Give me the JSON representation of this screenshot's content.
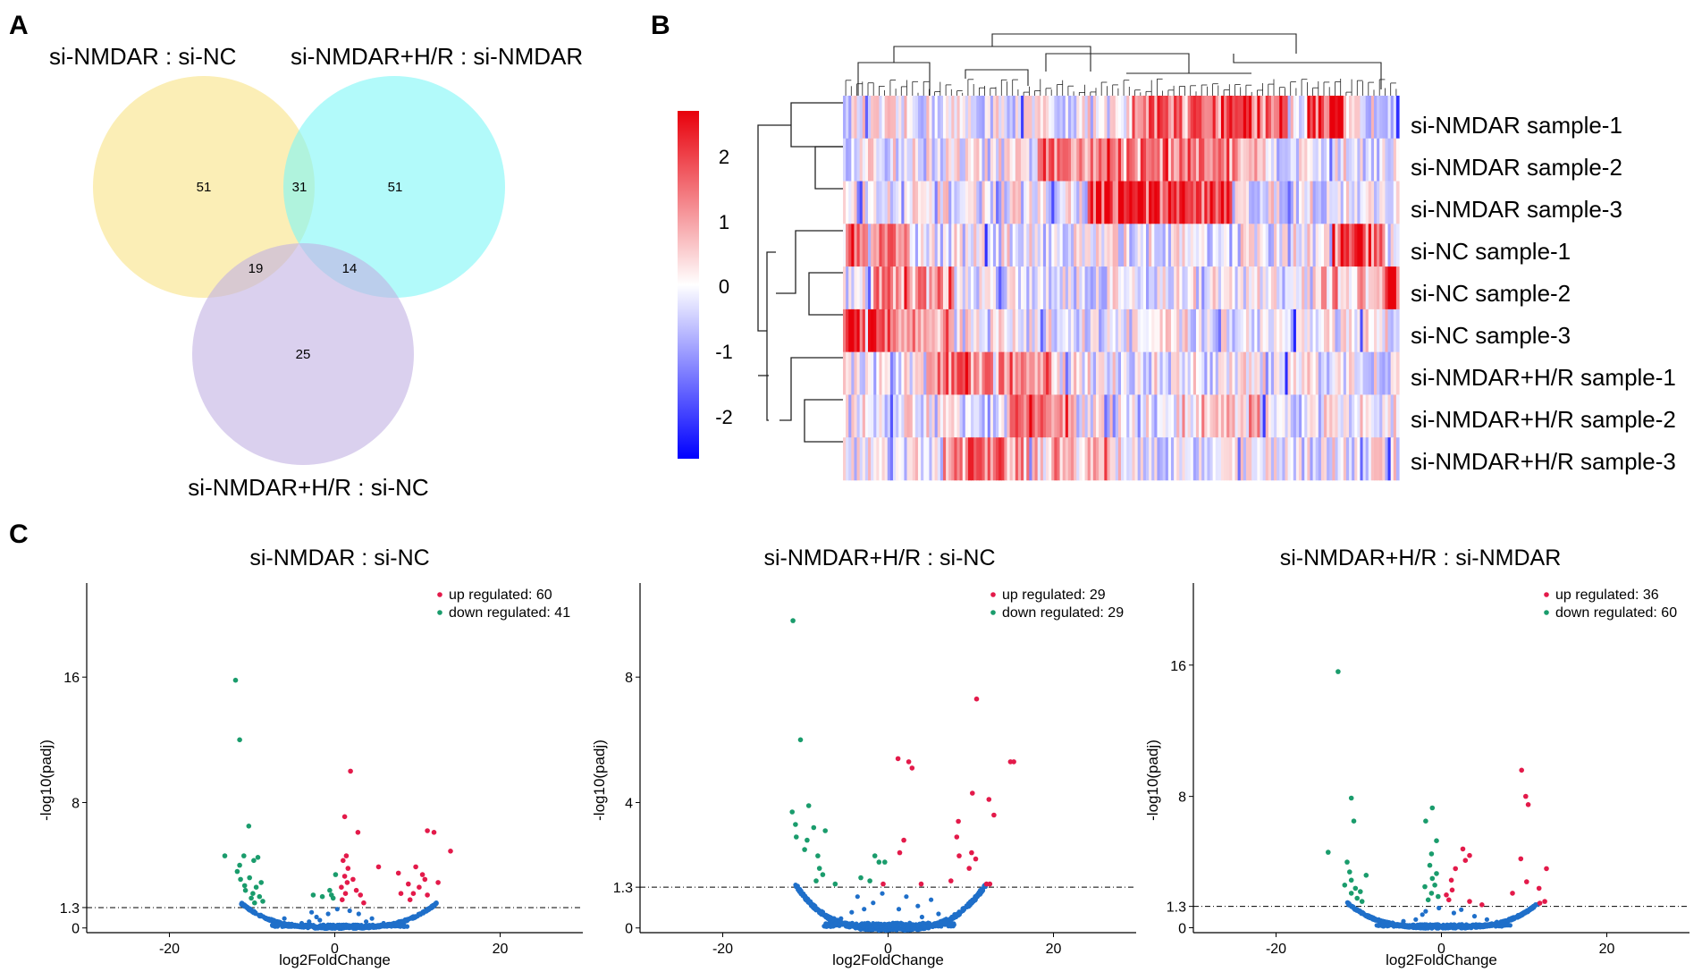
{
  "panels": {
    "a": "A",
    "b": "B",
    "c": "C"
  },
  "venn": {
    "sets": [
      {
        "label": "si-NMDAR : si-NC",
        "color": "#f9e286"
      },
      {
        "label": "si-NMDAR+H/R : si-NMDAR",
        "color": "#7ef6f6"
      },
      {
        "label": "si-NMDAR+H/R : si-NC",
        "color": "#c2b1e3"
      }
    ],
    "regions": {
      "a_only": "51",
      "b_only": "51",
      "a_b": "31",
      "a_c": "19",
      "b_c": "14",
      "c_only": "25"
    }
  },
  "heatmap": {
    "rows": [
      "si-NMDAR sample-1",
      "si-NMDAR sample-2",
      "si-NMDAR sample-3",
      "si-NC sample-1",
      "si-NC sample-2",
      "si-NC sample-3",
      "si-NMDAR+H/R sample-1",
      "si-NMDAR+H/R sample-2",
      "si-NMDAR+H/R sample-3"
    ],
    "legend_ticks": [
      "2",
      "1",
      "0",
      "-1",
      "-2"
    ],
    "colors": {
      "high": "#e8000b",
      "mid": "#ffffff",
      "low": "#0000ff"
    }
  },
  "chart_data": [
    {
      "type": "scatter",
      "title": "si-NMDAR : si-NC",
      "xlabel": "log2FoldChange",
      "ylabel": "-log10(padj)",
      "xlim": [
        -30,
        30
      ],
      "ylim": [
        -0.3,
        22
      ],
      "xticks": [
        "-20",
        "0",
        "20"
      ],
      "yticks": [
        "0",
        "1.3",
        "8",
        "16"
      ],
      "threshold": 1.3,
      "legend": {
        "up": "up regulated: 60",
        "down": "down regulated: 41"
      },
      "colors": {
        "up": "#e31a4a",
        "down": "#1a9c6c",
        "ns": "#1f6fc9"
      },
      "up": [
        [
          1.9,
          10
        ],
        [
          1.2,
          7.1
        ],
        [
          2.8,
          6.1
        ],
        [
          11.2,
          6.2
        ],
        [
          12,
          6.1
        ],
        [
          14,
          4.9
        ],
        [
          1,
          4.3
        ],
        [
          1.4,
          4.6
        ],
        [
          1.6,
          3.8
        ],
        [
          1.2,
          3.3
        ],
        [
          0.8,
          2.6
        ],
        [
          1.3,
          2.2
        ],
        [
          2.2,
          3.1
        ],
        [
          2.6,
          2.4
        ],
        [
          3.1,
          2.1
        ],
        [
          5.3,
          3.9
        ],
        [
          7.7,
          3.5
        ],
        [
          8.9,
          2.8
        ],
        [
          9.5,
          2.2
        ],
        [
          10.2,
          2.6
        ],
        [
          9.8,
          3.9
        ],
        [
          10.6,
          3.4
        ],
        [
          11.2,
          2.1
        ],
        [
          9.1,
          1.8
        ],
        [
          12.5,
          2.9
        ],
        [
          0.9,
          1.8
        ],
        [
          3.5,
          1.6
        ],
        [
          8,
          2.2
        ],
        [
          10.9,
          3.1
        ],
        [
          1.5,
          2.9
        ]
      ],
      "down": [
        [
          -12,
          15.8
        ],
        [
          -11.5,
          12
        ],
        [
          -10.4,
          6.5
        ],
        [
          -13.3,
          4.6
        ],
        [
          -11,
          4.6
        ],
        [
          -9.3,
          4.5
        ],
        [
          -9.8,
          4.3
        ],
        [
          -11.5,
          4
        ],
        [
          -11.4,
          3.1
        ],
        [
          -10.9,
          2.7
        ],
        [
          -9.9,
          2.2
        ],
        [
          -10.3,
          3.2
        ],
        [
          -8.9,
          2.9
        ],
        [
          -9.5,
          2.6
        ],
        [
          -10.8,
          2.4
        ],
        [
          -9.1,
          2
        ],
        [
          -8.7,
          1.7
        ],
        [
          -11.8,
          3.6
        ],
        [
          -10.1,
          1.9
        ],
        [
          -2.6,
          2.1
        ],
        [
          -1.5,
          2
        ],
        [
          -0.6,
          2.4
        ],
        [
          -0.2,
          1.9
        ],
        [
          0.1,
          3.4
        ],
        [
          -0.4,
          2.1
        ],
        [
          -9.7,
          1.6
        ]
      ],
      "ns_curve": {
        "cx": 0.5,
        "halfwidth": 11.8,
        "floor": 0.08,
        "height": 1.55
      },
      "ns_extra": [
        [
          -2.2,
          0.7
        ],
        [
          -1.8,
          0.5
        ],
        [
          -4,
          0.3
        ],
        [
          3.8,
          0.4
        ],
        [
          4.5,
          0.6
        ],
        [
          -5.2,
          0.25
        ],
        [
          2.9,
          0.9
        ],
        [
          -3.1,
          0.4
        ],
        [
          5.9,
          0.3
        ],
        [
          -6.1,
          0.6
        ],
        [
          0.3,
          1.2
        ],
        [
          -0.8,
          0.9
        ],
        [
          1.8,
          1.1
        ],
        [
          -2.8,
          1.0
        ]
      ]
    },
    {
      "type": "scatter",
      "title": "si-NMDAR+H/R : si-NC",
      "xlabel": "log2FoldChange",
      "ylabel": "-log10(padj)",
      "xlim": [
        -30,
        30
      ],
      "ylim": [
        -0.15,
        11
      ],
      "xticks": [
        "-20",
        "0",
        "20"
      ],
      "yticks": [
        "0",
        "1.3",
        "4",
        "8"
      ],
      "threshold": 1.3,
      "legend": {
        "up": "up regulated: 29",
        "down": "down regulated: 29"
      },
      "colors": {
        "up": "#e31a4a",
        "down": "#1a9c6c",
        "ns": "#1f6fc9"
      },
      "up": [
        [
          1.2,
          5.4
        ],
        [
          2.5,
          5.3
        ],
        [
          2.9,
          5.1
        ],
        [
          10.7,
          7.3
        ],
        [
          14.8,
          5.3
        ],
        [
          15.2,
          5.3
        ],
        [
          10.2,
          4.3
        ],
        [
          12.2,
          4.1
        ],
        [
          12.8,
          3.6
        ],
        [
          8.5,
          3.4
        ],
        [
          8.3,
          2.9
        ],
        [
          8.6,
          2.3
        ],
        [
          10.1,
          2.4
        ],
        [
          10.6,
          2.2
        ],
        [
          1.4,
          2.4
        ],
        [
          1.9,
          2.8
        ],
        [
          11.9,
          1.4
        ],
        [
          4,
          1.4
        ],
        [
          -0.6,
          1.4
        ],
        [
          9.8,
          1.9
        ],
        [
          7.6,
          1.5
        ],
        [
          12.3,
          1.4
        ]
      ],
      "down": [
        [
          -11.5,
          9.8
        ],
        [
          -10.6,
          6
        ],
        [
          -11.6,
          3.7
        ],
        [
          -9.6,
          3.9
        ],
        [
          -11.2,
          3.3
        ],
        [
          -11.1,
          2.9
        ],
        [
          -9.8,
          2.8
        ],
        [
          -7.6,
          3.1
        ],
        [
          -8.5,
          2.3
        ],
        [
          -8.3,
          1.9
        ],
        [
          -7.9,
          1.7
        ],
        [
          -1.6,
          2.3
        ],
        [
          -1.1,
          2.1
        ],
        [
          -0.4,
          2.1
        ],
        [
          -3.3,
          1.6
        ],
        [
          -2.2,
          1.5
        ],
        [
          -9,
          3.2
        ],
        [
          -10.1,
          2.5
        ],
        [
          -8.7,
          1.5
        ],
        [
          -6.4,
          1.4
        ]
      ],
      "ns_curve": {
        "cx": 0.3,
        "halfwidth": 11.5,
        "floor": 0.04,
        "height": 1.4
      },
      "ns_extra": [
        [
          -1.8,
          0.8
        ],
        [
          -2.9,
          0.6
        ],
        [
          -4.4,
          0.5
        ],
        [
          3.6,
          0.7
        ],
        [
          5.2,
          0.9
        ],
        [
          4.1,
          0.35
        ],
        [
          -5.7,
          0.3
        ],
        [
          1.3,
          0.6
        ],
        [
          -0.7,
          1.1
        ],
        [
          2.2,
          1.0
        ],
        [
          6.1,
          0.45
        ],
        [
          -3.7,
          1.0
        ]
      ]
    },
    {
      "type": "scatter",
      "title": "si-NMDAR+H/R : si-NMDAR",
      "xlabel": "log2FoldChange",
      "ylabel": "-log10(padj)",
      "xlim": [
        -30,
        30
      ],
      "ylim": [
        -0.3,
        21
      ],
      "xticks": [
        "-20",
        "0",
        "20"
      ],
      "yticks": [
        "0",
        "1.3",
        "8",
        "16"
      ],
      "threshold": 1.3,
      "legend": {
        "up": "up regulated: 36",
        "down": "down regulated: 60"
      },
      "colors": {
        "up": "#e31a4a",
        "down": "#1a9c6c",
        "ns": "#1f6fc9"
      },
      "up": [
        [
          9.7,
          9.6
        ],
        [
          10.2,
          8
        ],
        [
          10.5,
          7.5
        ],
        [
          2.6,
          4.8
        ],
        [
          3.4,
          4.4
        ],
        [
          1.7,
          3.6
        ],
        [
          1.2,
          2.9
        ],
        [
          1.3,
          2.3
        ],
        [
          2.9,
          4.1
        ],
        [
          9.6,
          4.2
        ],
        [
          12.7,
          3.6
        ],
        [
          10.3,
          2.8
        ],
        [
          11.8,
          2.4
        ],
        [
          8.6,
          2.1
        ],
        [
          12.5,
          1.6
        ],
        [
          11.9,
          1.5
        ],
        [
          0.6,
          2
        ],
        [
          0.9,
          1.7
        ],
        [
          3.4,
          1.6
        ],
        [
          4.9,
          1.4
        ]
      ],
      "down": [
        [
          -12.5,
          15.6
        ],
        [
          -10.9,
          7.9
        ],
        [
          -10.6,
          6.5
        ],
        [
          -13.7,
          4.6
        ],
        [
          -11.4,
          4
        ],
        [
          -11.1,
          3.4
        ],
        [
          -10.9,
          2.9
        ],
        [
          -10.4,
          2.4
        ],
        [
          -10.9,
          2.1
        ],
        [
          -10.2,
          1.8
        ],
        [
          -9.6,
          1.6
        ],
        [
          -1.1,
          7.3
        ],
        [
          -1.9,
          6.5
        ],
        [
          -0.6,
          5.3
        ],
        [
          -1.2,
          4.5
        ],
        [
          -1.4,
          3.8
        ],
        [
          -1.1,
          3
        ],
        [
          -0.8,
          2.6
        ],
        [
          -1.2,
          2.1
        ],
        [
          -0.4,
          1.9
        ],
        [
          -1.6,
          1.7
        ],
        [
          -0.6,
          3.3
        ],
        [
          -2,
          2.5
        ],
        [
          -9.1,
          3.2
        ],
        [
          -11.7,
          2.6
        ],
        [
          -9.8,
          2.2
        ]
      ],
      "ns_curve": {
        "cx": 0.2,
        "halfwidth": 11.6,
        "floor": 0.08,
        "height": 1.5
      },
      "ns_extra": [
        [
          -2.3,
          0.8
        ],
        [
          -3.1,
          0.5
        ],
        [
          -4.6,
          0.4
        ],
        [
          4,
          0.7
        ],
        [
          5.5,
          0.5
        ],
        [
          2.4,
          1.1
        ],
        [
          -0.3,
          1.2
        ],
        [
          -5.9,
          0.3
        ],
        [
          6.7,
          0.35
        ],
        [
          1.5,
          0.9
        ],
        [
          -1.9,
          1.0
        ]
      ]
    }
  ]
}
